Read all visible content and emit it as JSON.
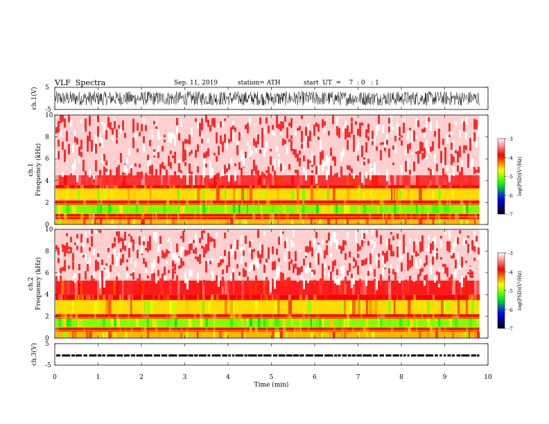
{
  "header": {
    "title": "VLF  Spectra",
    "date": "Sep. 11, 2019",
    "station": "station= ATH",
    "start": "start  UT  =    7  : 0   : 1"
  },
  "colorbar": {
    "label": "log(PSD)(V²/Hz)",
    "ticks": [
      "-3",
      "-4",
      "-5",
      "-6",
      "-7"
    ],
    "colors": [
      "#ffffff",
      "#ff0000",
      "#ffff00",
      "#00ff00",
      "#0000ff",
      "#000000"
    ]
  },
  "chart_data": [
    {
      "type": "line",
      "name": "ch1-waveform",
      "ylabel": "ch.1(V)",
      "ylim": [
        -5,
        5
      ],
      "yticks": [
        "5",
        "-5"
      ],
      "xlim": [
        0,
        10
      ],
      "data_end_min": 9.8,
      "description_of_signal": "dense noise filling ±3 V"
    },
    {
      "type": "heatmap",
      "name": "ch1-spectrogram",
      "ylabel": "ch.1",
      "ylabel2": "Frequency  (kHz)",
      "ylim": [
        0,
        10
      ],
      "yticks": [
        "10",
        "8",
        "6",
        "4",
        "2",
        "0"
      ],
      "xlim": [
        0,
        10
      ],
      "data_end_min": 9.8,
      "bands": [
        {
          "from": 0.0,
          "to": 0.5,
          "log_psd": -4.5
        },
        {
          "from": 0.5,
          "to": 1.0,
          "log_psd": -4.0
        },
        {
          "from": 1.0,
          "to": 1.8,
          "log_psd": -5.0
        },
        {
          "from": 1.8,
          "to": 2.2,
          "log_psd": -4.0
        },
        {
          "from": 2.2,
          "to": 3.3,
          "log_psd": -4.6
        },
        {
          "from": 3.3,
          "to": 3.6,
          "log_psd": -4.0
        },
        {
          "from": 3.6,
          "to": 4.5,
          "log_psd": -3.8
        },
        {
          "from": 4.5,
          "to": 10.0,
          "log_psd": -3.3
        }
      ]
    },
    {
      "type": "heatmap",
      "name": "ch2-spectrogram",
      "ylabel": "ch.2",
      "ylabel2": "Frequency  (kHz)",
      "ylim": [
        0,
        10
      ],
      "yticks": [
        "10",
        "8",
        "6",
        "4",
        "2",
        "0"
      ],
      "xlim": [
        0,
        10
      ],
      "data_end_min": 9.8,
      "bands": [
        {
          "from": 0.0,
          "to": 0.6,
          "log_psd": -4.5
        },
        {
          "from": 0.6,
          "to": 1.0,
          "log_psd": -4.0
        },
        {
          "from": 1.0,
          "to": 1.8,
          "log_psd": -5.0
        },
        {
          "from": 1.8,
          "to": 2.2,
          "log_psd": -4.0
        },
        {
          "from": 2.2,
          "to": 3.5,
          "log_psd": -4.6
        },
        {
          "from": 3.5,
          "to": 4.0,
          "log_psd": -4.0
        },
        {
          "from": 4.0,
          "to": 5.3,
          "log_psd": -3.9
        },
        {
          "from": 5.3,
          "to": 10.0,
          "log_psd": -3.3
        }
      ]
    },
    {
      "type": "line",
      "name": "ch3-waveform",
      "ylabel": "ch.3(V)",
      "ylim": [
        -5,
        5
      ],
      "yticks": [
        "5",
        "-5"
      ],
      "xlim": [
        0,
        10
      ],
      "data_end_min": 9.8,
      "level_v": -0.5,
      "xticks": [
        "0",
        "1",
        "2",
        "3",
        "4",
        "5",
        "6",
        "7",
        "8",
        "9",
        "10"
      ],
      "xlabel": "Time  (min)"
    }
  ]
}
